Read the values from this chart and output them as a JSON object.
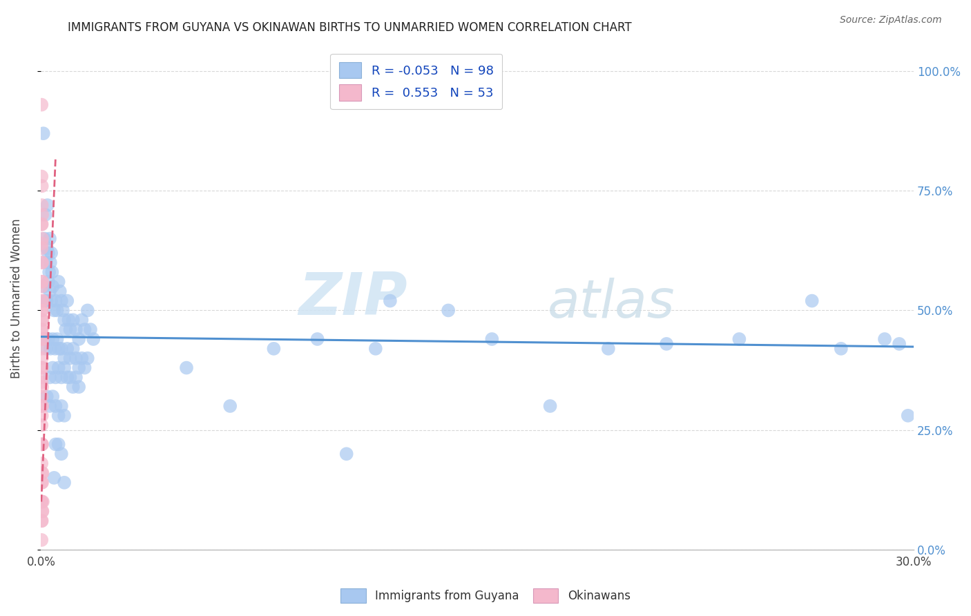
{
  "title": "IMMIGRANTS FROM GUYANA VS OKINAWAN BIRTHS TO UNMARRIED WOMEN CORRELATION CHART",
  "source": "Source: ZipAtlas.com",
  "ylabel": "Births to Unmarried Women",
  "ytick_vals": [
    0.0,
    0.25,
    0.5,
    0.75,
    1.0
  ],
  "ytick_labels": [
    "0.0%",
    "25.0%",
    "50.0%",
    "75.0%",
    "100.0%"
  ],
  "legend_blue_label": "Immigrants from Guyana",
  "legend_pink_label": "Okinawans",
  "blue_color": "#a8c8f0",
  "pink_color": "#f4b8cc",
  "blue_line_color": "#5090d0",
  "pink_line_color": "#e06080",
  "background_color": "#ffffff",
  "grid_color": "#d8d8d8",
  "blue_scatter": [
    [
      0.0008,
      0.87
    ],
    [
      0.0015,
      0.7
    ],
    [
      0.0022,
      0.72
    ],
    [
      0.0012,
      0.65
    ],
    [
      0.0025,
      0.62
    ],
    [
      0.0018,
      0.6
    ],
    [
      0.003,
      0.65
    ],
    [
      0.0035,
      0.62
    ],
    [
      0.0028,
      0.58
    ],
    [
      0.002,
      0.63
    ],
    [
      0.0032,
      0.6
    ],
    [
      0.0038,
      0.58
    ],
    [
      0.001,
      0.55
    ],
    [
      0.0015,
      0.52
    ],
    [
      0.002,
      0.52
    ],
    [
      0.0025,
      0.56
    ],
    [
      0.003,
      0.54
    ],
    [
      0.0035,
      0.52
    ],
    [
      0.004,
      0.55
    ],
    [
      0.0045,
      0.5
    ],
    [
      0.005,
      0.52
    ],
    [
      0.0055,
      0.5
    ],
    [
      0.006,
      0.56
    ],
    [
      0.0065,
      0.54
    ],
    [
      0.007,
      0.52
    ],
    [
      0.0075,
      0.5
    ],
    [
      0.008,
      0.48
    ],
    [
      0.0085,
      0.46
    ],
    [
      0.009,
      0.52
    ],
    [
      0.0095,
      0.48
    ],
    [
      0.01,
      0.46
    ],
    [
      0.011,
      0.48
    ],
    [
      0.012,
      0.46
    ],
    [
      0.013,
      0.44
    ],
    [
      0.014,
      0.48
    ],
    [
      0.015,
      0.46
    ],
    [
      0.016,
      0.5
    ],
    [
      0.017,
      0.46
    ],
    [
      0.018,
      0.44
    ],
    [
      0.0012,
      0.44
    ],
    [
      0.0018,
      0.42
    ],
    [
      0.0025,
      0.44
    ],
    [
      0.0032,
      0.42
    ],
    [
      0.004,
      0.44
    ],
    [
      0.0048,
      0.42
    ],
    [
      0.0055,
      0.44
    ],
    [
      0.0062,
      0.42
    ],
    [
      0.007,
      0.42
    ],
    [
      0.008,
      0.4
    ],
    [
      0.009,
      0.42
    ],
    [
      0.01,
      0.4
    ],
    [
      0.011,
      0.42
    ],
    [
      0.012,
      0.4
    ],
    [
      0.013,
      0.38
    ],
    [
      0.014,
      0.4
    ],
    [
      0.015,
      0.38
    ],
    [
      0.016,
      0.4
    ],
    [
      0.003,
      0.36
    ],
    [
      0.004,
      0.38
    ],
    [
      0.005,
      0.36
    ],
    [
      0.006,
      0.38
    ],
    [
      0.007,
      0.36
    ],
    [
      0.008,
      0.38
    ],
    [
      0.009,
      0.36
    ],
    [
      0.01,
      0.36
    ],
    [
      0.011,
      0.34
    ],
    [
      0.012,
      0.36
    ],
    [
      0.013,
      0.34
    ],
    [
      0.002,
      0.32
    ],
    [
      0.003,
      0.3
    ],
    [
      0.004,
      0.32
    ],
    [
      0.005,
      0.3
    ],
    [
      0.006,
      0.28
    ],
    [
      0.007,
      0.3
    ],
    [
      0.008,
      0.28
    ],
    [
      0.005,
      0.22
    ],
    [
      0.006,
      0.22
    ],
    [
      0.007,
      0.2
    ],
    [
      0.008,
      0.14
    ],
    [
      0.0045,
      0.15
    ],
    [
      0.12,
      0.52
    ],
    [
      0.14,
      0.5
    ],
    [
      0.155,
      0.44
    ],
    [
      0.175,
      0.3
    ],
    [
      0.195,
      0.42
    ],
    [
      0.215,
      0.43
    ],
    [
      0.24,
      0.44
    ],
    [
      0.265,
      0.52
    ],
    [
      0.275,
      0.42
    ],
    [
      0.29,
      0.44
    ],
    [
      0.295,
      0.43
    ],
    [
      0.298,
      0.28
    ],
    [
      0.05,
      0.38
    ],
    [
      0.065,
      0.3
    ],
    [
      0.08,
      0.42
    ],
    [
      0.095,
      0.44
    ],
    [
      0.105,
      0.2
    ],
    [
      0.115,
      0.42
    ]
  ],
  "pink_scatter": [
    [
      0.0002,
      0.93
    ],
    [
      0.0002,
      0.78
    ],
    [
      0.0003,
      0.76
    ],
    [
      0.0003,
      0.72
    ],
    [
      0.0003,
      0.68
    ],
    [
      0.0004,
      0.7
    ],
    [
      0.0004,
      0.65
    ],
    [
      0.0004,
      0.6
    ],
    [
      0.0003,
      0.64
    ],
    [
      0.0003,
      0.6
    ],
    [
      0.0003,
      0.56
    ],
    [
      0.0004,
      0.56
    ],
    [
      0.0004,
      0.52
    ],
    [
      0.0004,
      0.48
    ],
    [
      0.0002,
      0.68
    ],
    [
      0.0002,
      0.63
    ],
    [
      0.0005,
      0.52
    ],
    [
      0.0005,
      0.48
    ],
    [
      0.0005,
      0.44
    ],
    [
      0.0004,
      0.44
    ],
    [
      0.0003,
      0.5
    ],
    [
      0.0003,
      0.46
    ],
    [
      0.0002,
      0.55
    ],
    [
      0.0002,
      0.5
    ],
    [
      0.0002,
      0.46
    ],
    [
      0.0002,
      0.42
    ],
    [
      0.0002,
      0.38
    ],
    [
      0.0002,
      0.35
    ],
    [
      0.0003,
      0.4
    ],
    [
      0.0003,
      0.36
    ],
    [
      0.0003,
      0.32
    ],
    [
      0.0004,
      0.38
    ],
    [
      0.0004,
      0.34
    ],
    [
      0.0004,
      0.3
    ],
    [
      0.0002,
      0.3
    ],
    [
      0.0002,
      0.26
    ],
    [
      0.0002,
      0.22
    ],
    [
      0.0002,
      0.18
    ],
    [
      0.0002,
      0.14
    ],
    [
      0.0002,
      0.1
    ],
    [
      0.0002,
      0.06
    ],
    [
      0.0002,
      0.02
    ],
    [
      0.0003,
      0.28
    ],
    [
      0.0003,
      0.22
    ],
    [
      0.0003,
      0.16
    ],
    [
      0.0003,
      0.1
    ],
    [
      0.0003,
      0.06
    ],
    [
      0.0004,
      0.22
    ],
    [
      0.0004,
      0.14
    ],
    [
      0.0004,
      0.08
    ],
    [
      0.0005,
      0.16
    ],
    [
      0.0005,
      0.08
    ],
    [
      0.0006,
      0.1
    ]
  ],
  "blue_trend_x": [
    0.0,
    0.3
  ],
  "blue_trend_y": [
    0.445,
    0.424
  ],
  "pink_trend_x": [
    0.0001,
    0.005
  ],
  "pink_trend_y": [
    0.1,
    0.82
  ],
  "xlim": [
    0,
    0.3
  ],
  "ylim": [
    0,
    1.05
  ],
  "xticks": [
    0.0,
    0.05,
    0.1,
    0.15,
    0.2,
    0.25,
    0.3
  ],
  "xtick_labels_show": [
    "0.0%",
    "",
    "",
    "",
    "",
    "",
    "30.0%"
  ]
}
